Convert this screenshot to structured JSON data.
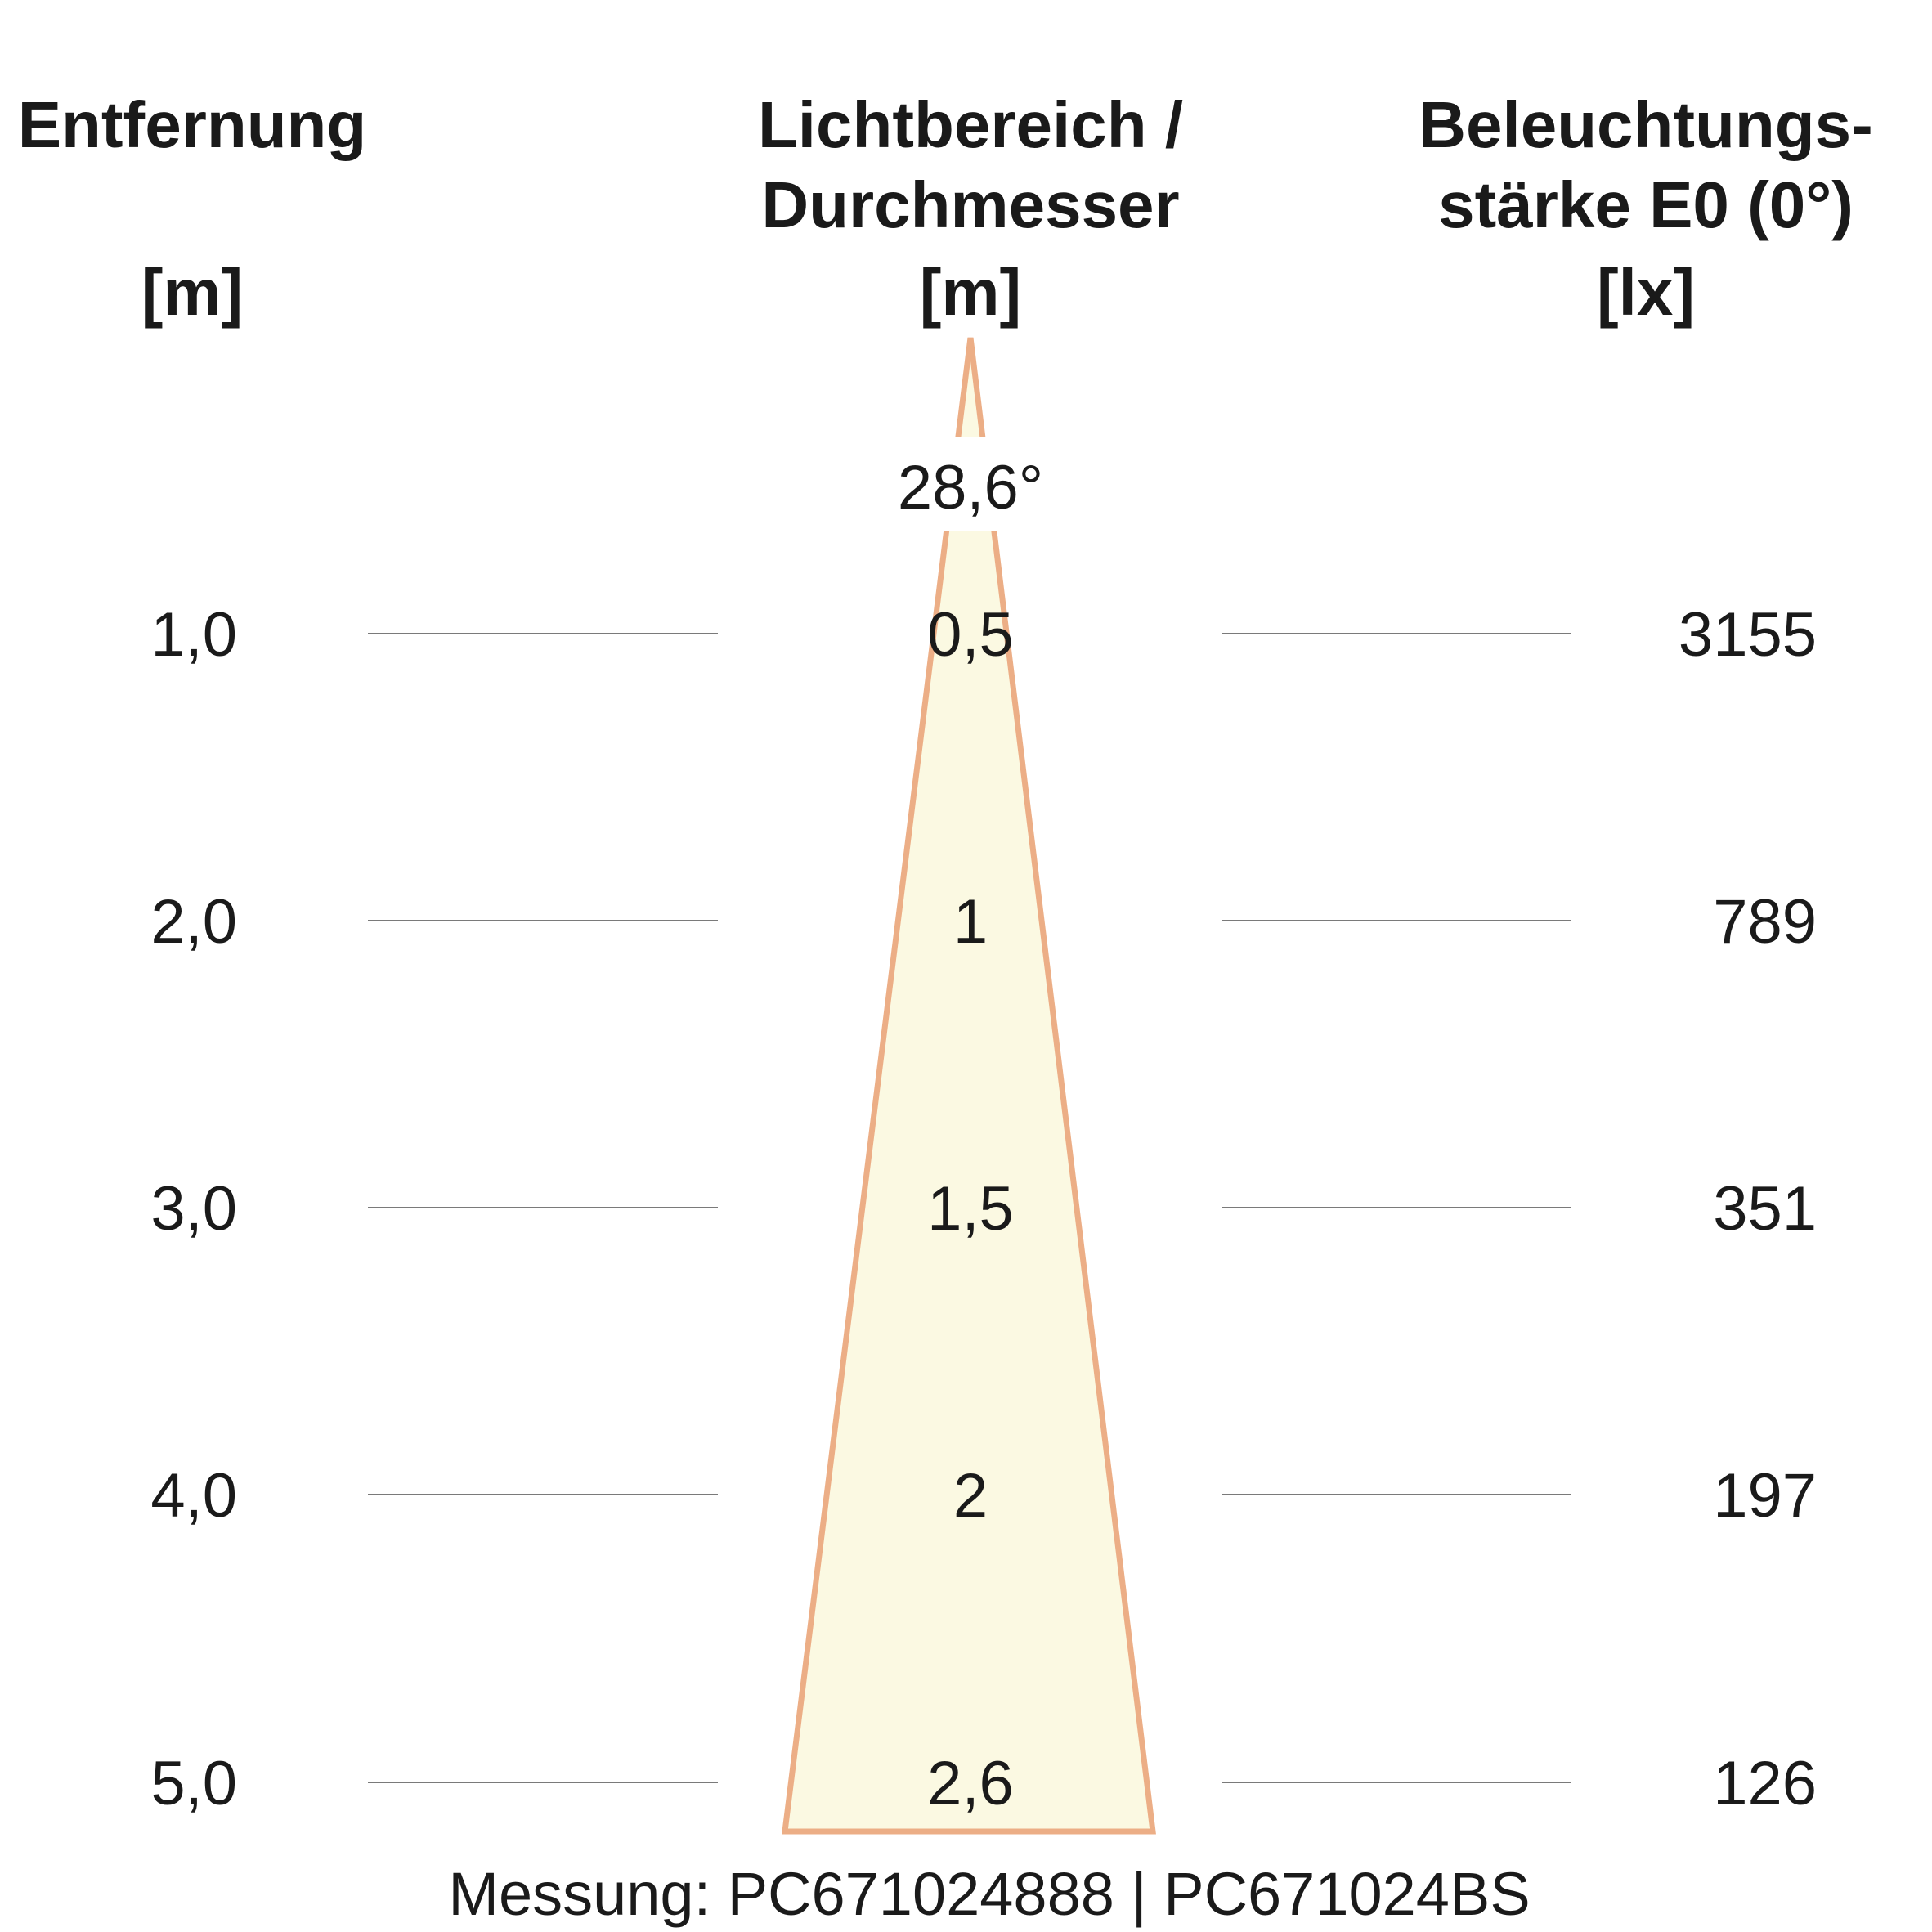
{
  "headers": {
    "distance": {
      "line1": "Entfernung",
      "unit": "[m]"
    },
    "diameter": {
      "line1": "Lichtbereich /",
      "line2": "Durchmesser",
      "unit": "[m]"
    },
    "illuminance": {
      "line1": "Beleuchtungs-",
      "line2": "stärke E0 (0°)",
      "unit": "[lx]"
    }
  },
  "beam_angle": "28,6°",
  "colors": {
    "beam_fill": "#fbf9e2",
    "beam_stroke": "#ecae86",
    "rule": "#7a7a7a",
    "text": "#1a1a1a"
  },
  "rows": [
    {
      "distance": "1,0",
      "diameter": "0,5",
      "illuminance": "3155"
    },
    {
      "distance": "2,0",
      "diameter": "1",
      "illuminance": "789"
    },
    {
      "distance": "3,0",
      "diameter": "1,5",
      "illuminance": "351"
    },
    {
      "distance": "4,0",
      "diameter": "2",
      "illuminance": "197"
    },
    {
      "distance": "5,0",
      "diameter": "2,6",
      "illuminance": "126"
    }
  ],
  "footer": "Messung: PC671024888 | PC671024BS"
}
